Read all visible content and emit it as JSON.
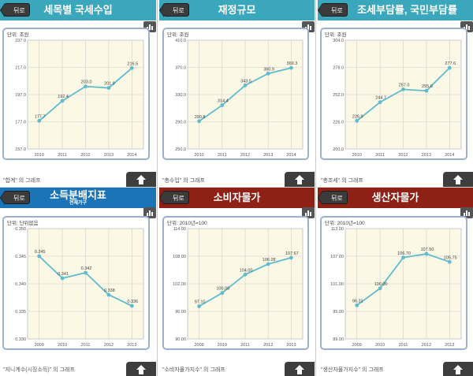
{
  "colors": {
    "header_teal": "#3aa7bd",
    "header_blue": "#1a74b6",
    "header_red": "#8f2015",
    "line": "#5fbccc",
    "plot_bg": "#fbf8e5",
    "grid": "#cfcfcf",
    "frame": "#9ab2cf"
  },
  "back_label": "뒤로",
  "panels": [
    {
      "id": "tax",
      "title": "세목별 국세수입",
      "subtitle": "",
      "has_back": true,
      "header_color": "#3aa7bd",
      "unit": "단위: 조원",
      "caption": "\"합계\" 의 그래프",
      "icons": {
        "chart": "bar-chart-icon",
        "up": "arrow-up-icon"
      },
      "chart_data": {
        "type": "line",
        "categories": [
          "2010",
          "2011",
          "2012",
          "2013",
          "2014"
        ],
        "values": [
          177.7,
          192.4,
          203.0,
          201.9,
          216.5
        ],
        "value_labels": [
          "177.7",
          "192.4",
          "203.0",
          "201.9",
          "216.5"
        ],
        "y_ticks": [
          "237.0",
          "217.0",
          "197.0",
          "177.0",
          "157.0"
        ],
        "ylim": [
          157.0,
          237.0
        ]
      }
    },
    {
      "id": "budget",
      "title": "재정규모",
      "subtitle": "",
      "has_back": true,
      "header_color": "#3aa7bd",
      "unit": "단위: 조원",
      "caption": "\"총수입\" 의 그래프",
      "icons": {
        "chart": "bar-chart-icon",
        "up": "arrow-up-icon"
      },
      "chart_data": {
        "type": "line",
        "categories": [
          "2010",
          "2011",
          "2012",
          "2013",
          "2014"
        ],
        "values": [
          290.8,
          314.4,
          343.5,
          360.9,
          369.3
        ],
        "value_labels": [
          "290.8",
          "314.4",
          "343.5",
          "360.9",
          "369.3"
        ],
        "y_ticks": [
          "410.0",
          "370.0",
          "330.0",
          "290.0",
          "250.0"
        ],
        "ylim": [
          250.0,
          410.0
        ]
      }
    },
    {
      "id": "burden",
      "title": "조세부담률, 국민부담률",
      "subtitle": "",
      "has_back": true,
      "header_color": "#3aa7bd",
      "unit": "단위: 조원",
      "caption": "\"총조세\" 의 그래프",
      "icons": {
        "chart": "bar-chart-icon",
        "up": "arrow-up-icon"
      },
      "chart_data": {
        "type": "line",
        "categories": [
          "2010",
          "2011",
          "2012",
          "2013",
          "2014"
        ],
        "values": [
          226.9,
          244.7,
          257.0,
          255.6,
          277.6
        ],
        "value_labels": [
          "226.9",
          "244.7",
          "257.0",
          "255.6",
          "277.6"
        ],
        "y_ticks": [
          "304.0",
          "278.0",
          "252.0",
          "226.0",
          "200.0"
        ],
        "ylim": [
          200.0,
          304.0
        ]
      }
    },
    {
      "id": "income",
      "title": "소득분배지표",
      "subtitle": "전체가구",
      "has_back": true,
      "header_color": "#1a74b6",
      "unit": "단위: 단위없음",
      "caption": "\"지니계수(시장소득)\" 의 그래프",
      "icons": {
        "chart": "bar-chart-icon",
        "up": "arrow-up-icon"
      },
      "chart_data": {
        "type": "line",
        "categories": [
          "2009",
          "2010",
          "2011",
          "2012",
          "2013"
        ],
        "values": [
          0.345,
          0.341,
          0.342,
          0.338,
          0.336
        ],
        "value_labels": [
          "0.345",
          "0.341",
          "0.342",
          "0.338",
          "0.336"
        ],
        "y_ticks": [
          "0.350",
          "0.345",
          "0.340",
          "0.335",
          "0.330"
        ],
        "ylim": [
          0.33,
          0.35
        ]
      }
    },
    {
      "id": "cpi",
      "title": "소비자물가",
      "subtitle": "",
      "has_back": true,
      "header_color": "#8f2015",
      "unit": "단위: 2010년=100",
      "caption": "\"소비자물가지수\" 의 그래프",
      "icons": {
        "chart": "bar-chart-icon",
        "up": "arrow-up-icon"
      },
      "chart_data": {
        "type": "line",
        "categories": [
          "2009",
          "2010",
          "2011",
          "2012",
          "2013"
        ],
        "values": [
          97.1,
          100.0,
          104.0,
          106.28,
          107.67
        ],
        "value_labels": [
          "97.10",
          "100.00",
          "104.00",
          "106.28",
          "107.67"
        ],
        "y_ticks": [
          "114.00",
          "108.00",
          "102.00",
          "96.00",
          "90.00"
        ],
        "ylim": [
          90.0,
          114.0
        ]
      }
    },
    {
      "id": "ppi",
      "title": "생산자물가",
      "subtitle": "",
      "has_back": true,
      "header_color": "#8f2015",
      "unit": "단위: 2010년=100",
      "caption": "\"생산자물가지수\" 의 그래프",
      "icons": {
        "chart": "bar-chart-icon",
        "up": "arrow-up-icon"
      },
      "chart_data": {
        "type": "line",
        "categories": [
          "2009",
          "2010",
          "2011",
          "2012",
          "2013"
        ],
        "values": [
          96.31,
          100.0,
          106.7,
          107.5,
          105.75
        ],
        "value_labels": [
          "96.31",
          "100.00",
          "106.70",
          "107.50",
          "105.75"
        ],
        "y_ticks": [
          "113.00",
          "107.00",
          "101.00",
          "95.00",
          "89.00"
        ],
        "ylim": [
          89.0,
          113.0
        ]
      }
    }
  ]
}
